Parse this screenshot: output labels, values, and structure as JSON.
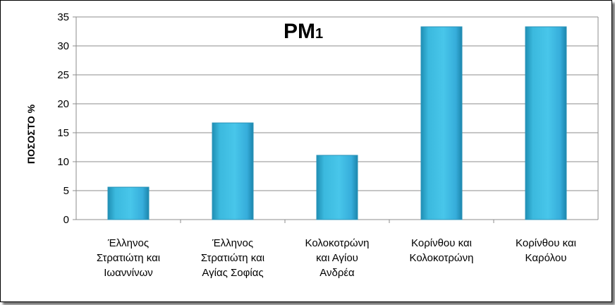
{
  "chart_data": {
    "type": "bar",
    "title": "PM",
    "title_subscript": "1",
    "ylabel": "ΠΟΣΟΣΤΟ %",
    "xlabel": "",
    "ylim": [
      0,
      35
    ],
    "yticks": [
      0,
      5,
      10,
      15,
      20,
      25,
      30,
      35
    ],
    "grid": true,
    "legend": "none",
    "categories": [
      [
        "Έλληνος",
        "Στρατιώτη και",
        "Ιωαννίνων"
      ],
      [
        "Έλληνος",
        "Στρατιώτη και",
        "Αγίας Σοφίας"
      ],
      [
        "Κολοκοτρώνη",
        "και Αγίου",
        "Ανδρέα"
      ],
      [
        "Κορίνθου και",
        "Κολοκοτρώνη"
      ],
      [
        "Κορίνθου και",
        "Καρόλου"
      ]
    ],
    "values": [
      5.6,
      16.7,
      11.1,
      33.3,
      33.3
    ],
    "bar_color": "#3bb9de"
  }
}
